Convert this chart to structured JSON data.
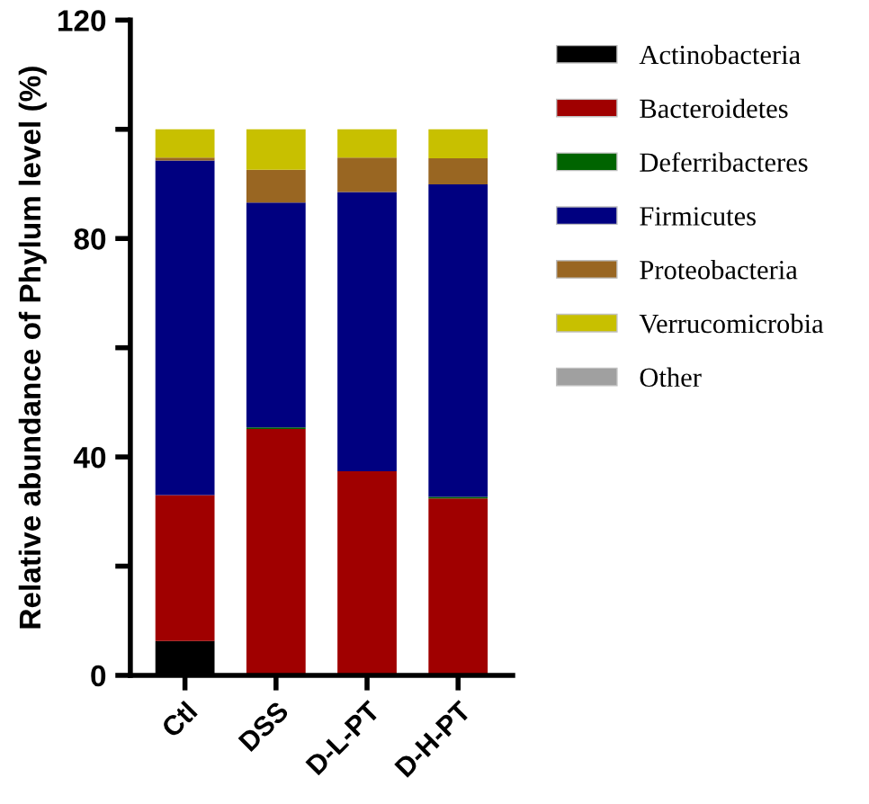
{
  "chart_data": {
    "type": "bar",
    "stacked": true,
    "ylabel": "Relative abundance of Phylum level (%)",
    "categories": [
      "Ctl",
      "DSS",
      "D-L-PT",
      "D-H-PT"
    ],
    "series": [
      {
        "name": "Actinobacteria",
        "color": "#000000",
        "values": [
          6.3,
          0,
          0,
          0
        ]
      },
      {
        "name": "Bacteroidetes",
        "color": "#a00000",
        "values": [
          26.7,
          45.1,
          37.4,
          32.4
        ]
      },
      {
        "name": "Deferribacteres",
        "color": "#006400",
        "values": [
          0,
          0.3,
          0,
          0.3
        ]
      },
      {
        "name": "Firmicutes",
        "color": "#000080",
        "values": [
          61.3,
          41.2,
          51.1,
          57.2
        ]
      },
      {
        "name": "Proteobacteria",
        "color": "#996622",
        "values": [
          0.5,
          6.0,
          6.3,
          4.8
        ]
      },
      {
        "name": "Verrucomicrobia",
        "color": "#c8c000",
        "values": [
          5.2,
          7.4,
          5.2,
          5.3
        ]
      },
      {
        "name": "Other",
        "color": "#a0a0a0",
        "values": [
          0,
          0,
          0,
          0
        ]
      }
    ],
    "ylim": [
      0,
      120
    ],
    "yticks": [
      0,
      {
        "value": 20,
        "label": null
      },
      40,
      {
        "value": 60,
        "label": null
      },
      80,
      {
        "value": 100,
        "label": null
      },
      120
    ],
    "grid": false,
    "legend": "right"
  }
}
